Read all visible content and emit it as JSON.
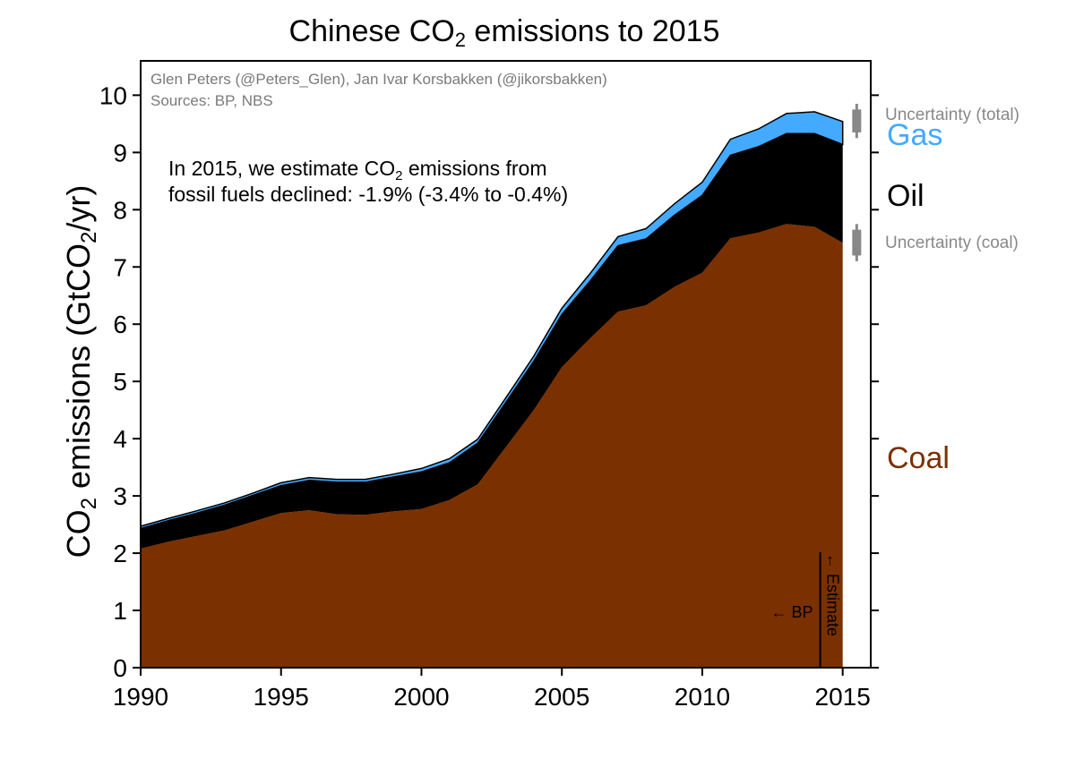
{
  "chart_data": {
    "type": "area",
    "stacked": true,
    "title_prefix": "Chinese CO",
    "title_sub": "2",
    "title_suffix": " emissions to 2015",
    "ylabel_prefix": "CO",
    "ylabel_sub1": "2",
    "ylabel_mid": " emissions (GtCO",
    "ylabel_sub2": "2",
    "ylabel_suffix": "/yr)",
    "xlim": [
      1990,
      2016
    ],
    "ylim": [
      0,
      10.6
    ],
    "x_ticks": [
      "1990",
      "1995",
      "2000",
      "2005",
      "2010",
      "2015"
    ],
    "y_ticks": [
      "0",
      "1",
      "2",
      "3",
      "4",
      "5",
      "6",
      "7",
      "8",
      "9",
      "10"
    ],
    "x": [
      1990,
      1991,
      1992,
      1993,
      1994,
      1995,
      1996,
      1997,
      1998,
      1999,
      2000,
      2001,
      2002,
      2003,
      2004,
      2005,
      2006,
      2007,
      2008,
      2009,
      2010,
      2011,
      2012,
      2013,
      2014,
      2015
    ],
    "series": [
      {
        "name": "Coal",
        "color": "#7b3000",
        "values": [
          2.08,
          2.2,
          2.3,
          2.4,
          2.55,
          2.7,
          2.75,
          2.68,
          2.67,
          2.73,
          2.77,
          2.93,
          3.2,
          3.85,
          4.5,
          5.25,
          5.75,
          6.22,
          6.33,
          6.65,
          6.9,
          7.5,
          7.6,
          7.75,
          7.7,
          7.42
        ]
      },
      {
        "name": "Oil",
        "color": "#000000",
        "values": [
          0.35,
          0.37,
          0.4,
          0.44,
          0.46,
          0.48,
          0.52,
          0.56,
          0.57,
          0.6,
          0.65,
          0.65,
          0.72,
          0.78,
          0.85,
          0.92,
          1.0,
          1.15,
          1.16,
          1.25,
          1.35,
          1.45,
          1.5,
          1.58,
          1.63,
          1.72
        ]
      },
      {
        "name": "Gas",
        "color": "#44aaff",
        "values": [
          0.04,
          0.04,
          0.04,
          0.04,
          0.04,
          0.05,
          0.05,
          0.05,
          0.05,
          0.05,
          0.06,
          0.07,
          0.07,
          0.08,
          0.09,
          0.11,
          0.13,
          0.16,
          0.18,
          0.2,
          0.23,
          0.28,
          0.31,
          0.35,
          0.38,
          0.4
        ]
      }
    ],
    "legend": [
      {
        "name": "Gas",
        "color": "#44aaff",
        "position": "upper-right"
      },
      {
        "name": "Oil",
        "color": "#000000",
        "position": "upper-right"
      },
      {
        "name": "Coal",
        "color": "#7b3000",
        "position": "middle-right"
      }
    ],
    "uncertainty": [
      {
        "label": "Uncertainty (total)",
        "x": 2015.5,
        "center": 9.55,
        "low": 9.25,
        "high": 9.85,
        "inner_low": 9.35,
        "inner_high": 9.75
      },
      {
        "label": "Uncertainty (coal)",
        "x": 2015.5,
        "center": 7.42,
        "low": 7.1,
        "high": 7.75,
        "inner_low": 7.2,
        "inner_high": 7.65
      }
    ],
    "credits": [
      "Glen Peters (@Peters_Glen), Jan Ivar Korsbakken (@jikorsbakken)",
      "Sources: BP, NBS"
    ],
    "annotation": {
      "line1_prefix": "In 2015, we estimate CO",
      "line1_sub": "2",
      "line1_suffix": " emissions from",
      "line2": "fossil fuels declined: -1.9% (-3.4% to -0.4%)"
    },
    "divider": {
      "x": 2014.2,
      "left_label": "← BP",
      "right_label": "← Estimate"
    }
  }
}
